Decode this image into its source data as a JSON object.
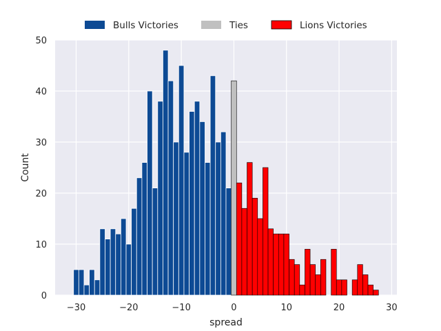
{
  "chart_data": {
    "type": "bar",
    "title": "",
    "xlabel": "spread",
    "ylabel": "Count",
    "xlim": [
      -34,
      31
    ],
    "ylim": [
      0,
      50
    ],
    "x_ticks": [
      -30,
      -20,
      -10,
      0,
      10,
      20,
      30
    ],
    "x_tick_labels": [
      "−30",
      "−20",
      "−10",
      "0",
      "10",
      "20",
      "30"
    ],
    "y_ticks": [
      0,
      10,
      20,
      30,
      40,
      50
    ],
    "y_tick_labels": [
      "0",
      "10",
      "20",
      "30",
      "40",
      "50"
    ],
    "grid": true,
    "legend_position": "top-center",
    "bin_width": 1,
    "series": [
      {
        "name": "Bulls Victories",
        "color": "#0d4a94",
        "edge": "#ffffff",
        "x": [
          -30,
          -29,
          -28,
          -27,
          -26,
          -25,
          -24,
          -23,
          -22,
          -21,
          -20,
          -19,
          -18,
          -17,
          -16,
          -15,
          -14,
          -13,
          -12,
          -11,
          -10,
          -9,
          -8,
          -7,
          -6,
          -5,
          -4,
          -3,
          -2,
          -1
        ],
        "values": [
          5,
          5,
          2,
          5,
          3,
          13,
          11,
          13,
          12,
          15,
          10,
          17,
          23,
          26,
          40,
          21,
          38,
          48,
          42,
          30,
          45,
          28,
          36,
          38,
          34,
          26,
          43,
          30,
          32,
          21
        ]
      },
      {
        "name": "Ties",
        "color": "#c0c0c0",
        "edge": "#000000",
        "x": [
          0
        ],
        "values": [
          42
        ]
      },
      {
        "name": "Lions Victories",
        "color": "#ff0000",
        "edge": "#000000",
        "x": [
          1,
          2,
          3,
          4,
          5,
          6,
          7,
          8,
          9,
          10,
          11,
          12,
          13,
          14,
          15,
          16,
          17,
          18,
          19,
          20,
          21,
          22,
          23,
          24,
          25,
          26,
          27
        ],
        "values": [
          22,
          17,
          26,
          19,
          15,
          25,
          13,
          12,
          12,
          12,
          7,
          6,
          2,
          9,
          6,
          4,
          7,
          0,
          9,
          3,
          3,
          0,
          3,
          6,
          4,
          2,
          1
        ]
      }
    ]
  }
}
